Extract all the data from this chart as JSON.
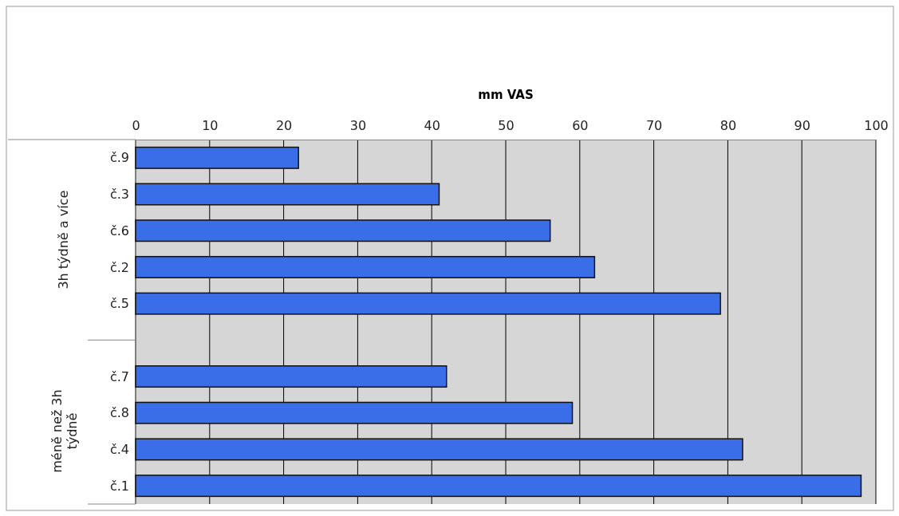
{
  "chart_data": {
    "type": "bar",
    "orientation": "horizontal",
    "xlabel": "mm VAS",
    "categories": [
      "č.9",
      "č.3",
      "č.6",
      "č.2",
      "č.5",
      null,
      "č.7",
      "č.8",
      "č.4",
      "č.1"
    ],
    "values": [
      22,
      41,
      56,
      62,
      79,
      null,
      42,
      59,
      82,
      98
    ],
    "color": "#3a6ee8",
    "xlim": [
      0,
      100
    ],
    "xticks": [
      0,
      10,
      20,
      30,
      40,
      50,
      60,
      70,
      80,
      90,
      100
    ],
    "grid": "x",
    "annotations": [
      "3h týdně a více",
      "méně než 3h týdně"
    ]
  }
}
